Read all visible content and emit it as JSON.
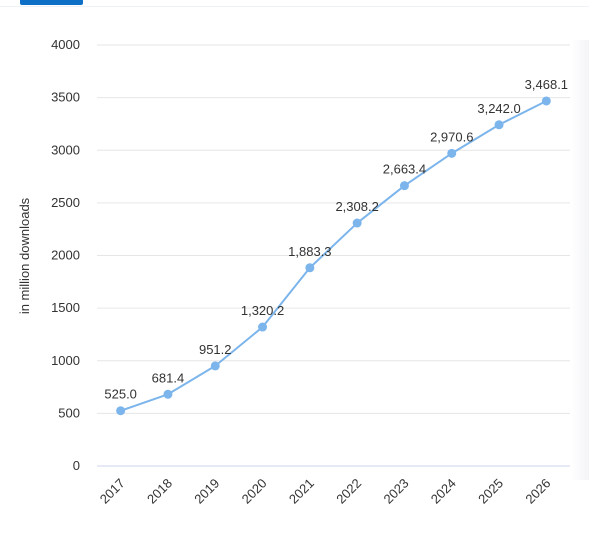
{
  "chart_data": {
    "type": "line",
    "title": "",
    "xlabel": "",
    "ylabel": "in million downloads",
    "ylim": [
      0,
      4000
    ],
    "yticks": [
      "0",
      "500",
      "1000",
      "1500",
      "2000",
      "2500",
      "3000",
      "3500",
      "4000"
    ],
    "categories": [
      "2017",
      "2018",
      "2019",
      "2020",
      "2021",
      "2022",
      "2023",
      "2024",
      "2025",
      "2026"
    ],
    "series": [
      {
        "values": [
          525.0,
          681.4,
          951.2,
          1320.2,
          1883.3,
          2308.2,
          2663.4,
          2970.6,
          3242.0,
          3468.1
        ],
        "labels": [
          "525.0",
          "681.4",
          "951.2",
          "1,320.2",
          "1,883.3",
          "2,308.2",
          "2,663.4",
          "2,970.6",
          "3,242.0",
          "3,468.1"
        ],
        "color": "#7cb5ec"
      }
    ],
    "grid": true
  }
}
